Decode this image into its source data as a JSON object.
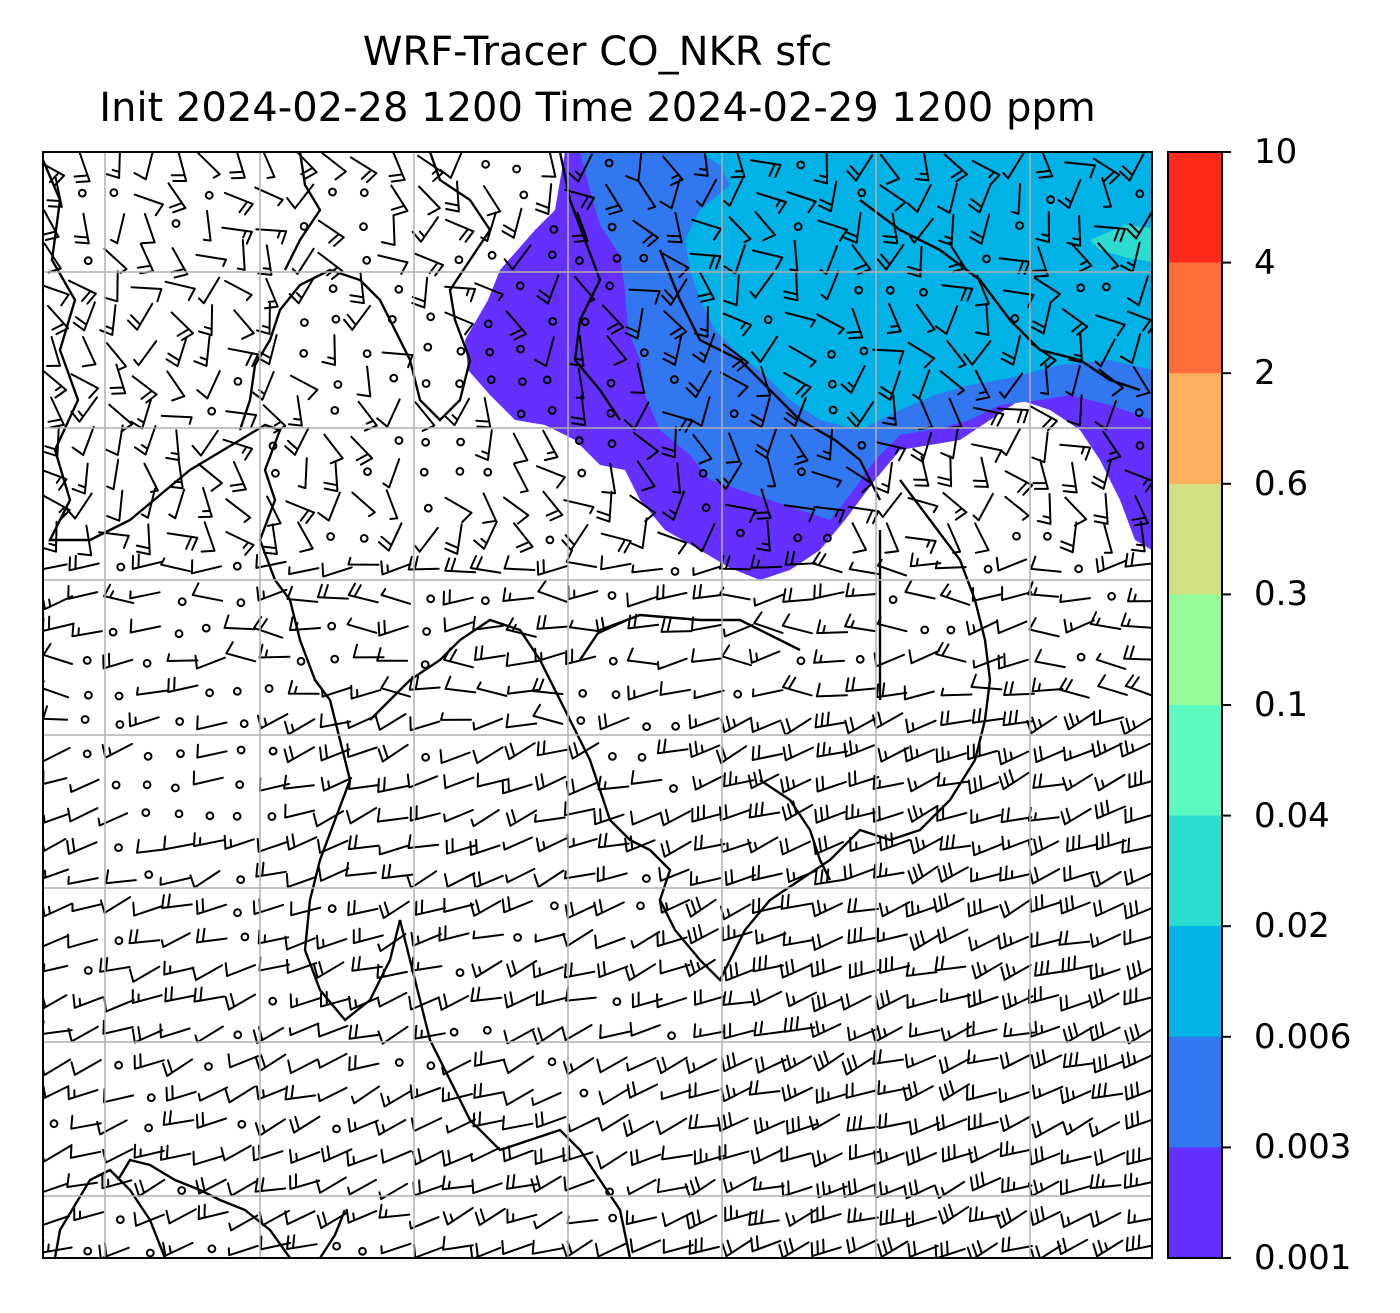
{
  "title": {
    "line1": "WRF-Tracer CO_NKR sfc",
    "line2": "Init 2024-02-28 1200 Time 2024-02-29 1200 ppm"
  },
  "colorbar": {
    "labels": [
      "10",
      "4",
      "2",
      "0.6",
      "0.3",
      "0.1",
      "0.04",
      "0.02",
      "0.006",
      "0.003",
      "0.001"
    ],
    "colors": [
      "#ff2a1a",
      "#ff6e3a",
      "#ffae5e",
      "#d2e082",
      "#96fa9a",
      "#5cf9c0",
      "#2ddcd0",
      "#00b2e6",
      "#3178f0",
      "#6430ff"
    ]
  },
  "map": {
    "plume_colors": {
      "outer": "#6430ff",
      "mid": "#3178f0",
      "inner": "#00b2e6",
      "core": "#2ddcd0"
    },
    "gridline_color": "#b0b0b0"
  }
}
